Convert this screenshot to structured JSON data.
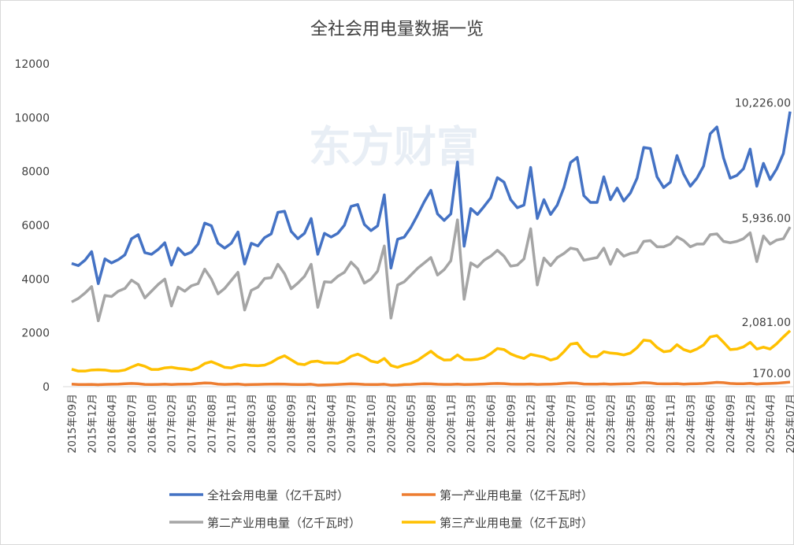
{
  "chart_data": {
    "type": "line",
    "title": "全社会用电量数据一览",
    "watermark": "东方财富",
    "categories": [
      "2015年09月",
      null,
      null,
      "2015年12月",
      null,
      null,
      "2016年04月",
      null,
      null,
      "2016年07月",
      null,
      null,
      "2016年10月",
      null,
      null,
      "2017年02月",
      null,
      null,
      "2017年05月",
      null,
      null,
      "2017年08月",
      null,
      null,
      "2017年11月",
      null,
      null,
      "2018年03月",
      null,
      null,
      "2018年06月",
      null,
      null,
      "2018年09月",
      null,
      null,
      "2018年12月",
      null,
      null,
      "2019年04月",
      null,
      null,
      "2019年07月",
      null,
      null,
      "2019年10月",
      null,
      null,
      "2020年02月",
      null,
      null,
      "2020年05月",
      null,
      null,
      "2020年08月",
      null,
      null,
      "2020年11月",
      null,
      null,
      "2021年03月",
      null,
      null,
      "2021年06月",
      null,
      null,
      "2021年09月",
      null,
      null,
      "2021年12月",
      null,
      null,
      "2022年04月",
      null,
      null,
      "2022年07月",
      null,
      null,
      "2022年10月",
      null,
      null,
      "2023年02月",
      null,
      null,
      "2023年05月",
      null,
      null,
      "2023年08月",
      null,
      null,
      "2023年11月",
      null,
      null,
      "2024年03月",
      null,
      null,
      "2024年06月",
      null,
      null,
      "2024年09月",
      null,
      null,
      "2024年12月",
      null,
      null,
      "2025年04月",
      null,
      null,
      "2025年07月"
    ],
    "series": [
      {
        "name": "全社会用电量（亿千瓦时）",
        "color": "#4472c4",
        "values": [
          4580,
          4500,
          4700,
          5020,
          3830,
          4750,
          4600,
          4720,
          4900,
          5500,
          5650,
          4980,
          4920,
          5100,
          5350,
          4520,
          5150,
          4900,
          5000,
          5300,
          6080,
          5980,
          5330,
          5150,
          5330,
          5750,
          4560,
          5330,
          5230,
          5540,
          5680,
          6480,
          6520,
          5770,
          5500,
          5700,
          6250,
          4920,
          5700,
          5560,
          5700,
          6000,
          6700,
          6770,
          6030,
          5800,
          5980,
          7130,
          4410,
          5480,
          5560,
          5920,
          6380,
          6870,
          7300,
          6420,
          6180,
          6420,
          8350,
          5220,
          6620,
          6400,
          6700,
          7020,
          7770,
          7600,
          6950,
          6650,
          6750,
          8150,
          6250,
          6950,
          6400,
          6750,
          7400,
          8330,
          8520,
          7100,
          6850,
          6850,
          7800,
          6950,
          7380,
          6900,
          7200,
          7750,
          8890,
          8850,
          7800,
          7400,
          7600,
          8590,
          7900,
          7450,
          7750,
          8200,
          9400,
          9650,
          8500,
          7750,
          7850,
          8100,
          8830,
          7450,
          8300,
          7700,
          8100,
          8670,
          10226
        ],
        "value_labels": [
          null,
          null,
          null,
          null,
          null,
          null,
          null,
          null,
          null,
          null,
          null,
          null,
          null,
          null,
          null,
          null,
          null,
          null,
          null,
          null,
          null,
          null,
          null,
          null,
          null,
          null,
          null,
          null,
          null,
          null,
          null,
          null,
          null,
          null,
          null,
          null,
          null,
          null,
          null,
          null,
          null,
          null,
          null,
          null,
          null,
          null,
          null,
          null,
          null,
          null,
          null,
          null,
          null,
          null,
          null,
          null,
          null,
          null,
          null,
          null,
          null,
          null,
          null,
          null,
          null,
          null,
          null,
          null,
          null,
          null,
          null,
          null,
          null,
          null,
          null,
          null,
          null,
          null,
          null,
          null,
          null,
          null,
          null,
          null,
          null,
          null,
          null,
          null,
          null,
          null,
          null,
          null,
          null,
          null,
          null,
          null,
          null,
          null,
          null,
          null,
          null,
          null,
          null,
          null,
          null,
          null,
          null,
          null,
          "10,226.00"
        ]
      },
      {
        "name": "第一产业用电量（亿千瓦时）",
        "color": "#ed7d31",
        "values": [
          95,
          80,
          80,
          85,
          75,
          85,
          90,
          95,
          110,
          120,
          110,
          85,
          80,
          85,
          95,
          80,
          90,
          95,
          100,
          120,
          140,
          130,
          95,
          85,
          90,
          100,
          75,
          80,
          85,
          90,
          95,
          100,
          95,
          85,
          80,
          80,
          90,
          60,
          65,
          75,
          85,
          95,
          105,
          100,
          85,
          80,
          80,
          90,
          60,
          65,
          80,
          85,
          100,
          110,
          105,
          90,
          85,
          85,
          95,
          80,
          85,
          90,
          100,
          115,
          120,
          115,
          95,
          90,
          90,
          100,
          85,
          90,
          95,
          105,
          125,
          140,
          130,
          100,
          95,
          95,
          105,
          90,
          100,
          105,
          110,
          130,
          150,
          140,
          110,
          105,
          105,
          115,
          95,
          105,
          110,
          120,
          140,
          160,
          150,
          120,
          110,
          110,
          125,
          100,
          115,
          120,
          130,
          150,
          170
        ],
        "value_labels": [
          null,
          null,
          null,
          null,
          null,
          null,
          null,
          null,
          null,
          null,
          null,
          null,
          null,
          null,
          null,
          null,
          null,
          null,
          null,
          null,
          null,
          null,
          null,
          null,
          null,
          null,
          null,
          null,
          null,
          null,
          null,
          null,
          null,
          null,
          null,
          null,
          null,
          null,
          null,
          null,
          null,
          null,
          null,
          null,
          null,
          null,
          null,
          null,
          null,
          null,
          null,
          null,
          null,
          null,
          null,
          null,
          null,
          null,
          null,
          null,
          null,
          null,
          null,
          null,
          null,
          null,
          null,
          null,
          null,
          null,
          null,
          null,
          null,
          null,
          null,
          null,
          null,
          null,
          null,
          null,
          null,
          null,
          null,
          null,
          null,
          null,
          null,
          null,
          null,
          null,
          null,
          null,
          null,
          null,
          null,
          null,
          null,
          null,
          null,
          null,
          null,
          null,
          null,
          null,
          null,
          null,
          null,
          null,
          "170.00"
        ]
      },
      {
        "name": "第二产业用电量（亿千瓦时）",
        "color": "#a5a5a5",
        "values": [
          3150,
          3280,
          3480,
          3720,
          2450,
          3390,
          3350,
          3550,
          3650,
          3960,
          3800,
          3300,
          3550,
          3800,
          4000,
          3000,
          3700,
          3550,
          3750,
          3830,
          4370,
          4000,
          3450,
          3650,
          3950,
          4250,
          2850,
          3580,
          3700,
          4020,
          4050,
          4550,
          4200,
          3640,
          3850,
          4100,
          4550,
          2950,
          3900,
          3880,
          4100,
          4250,
          4630,
          4380,
          3850,
          4000,
          4300,
          5230,
          2550,
          3780,
          3900,
          4150,
          4400,
          4600,
          4800,
          4150,
          4350,
          4680,
          6200,
          3250,
          4600,
          4450,
          4700,
          4850,
          5070,
          4850,
          4480,
          4520,
          4750,
          5870,
          3780,
          4780,
          4500,
          4800,
          4950,
          5150,
          5100,
          4700,
          4750,
          4800,
          5150,
          4550,
          5100,
          4850,
          4950,
          5000,
          5400,
          5430,
          5200,
          5200,
          5300,
          5570,
          5430,
          5200,
          5300,
          5300,
          5650,
          5680,
          5400,
          5350,
          5400,
          5500,
          5720,
          4650,
          5600,
          5300,
          5450,
          5500,
          5936
        ],
        "value_labels": [
          null,
          null,
          null,
          null,
          null,
          null,
          null,
          null,
          null,
          null,
          null,
          null,
          null,
          null,
          null,
          null,
          null,
          null,
          null,
          null,
          null,
          null,
          null,
          null,
          null,
          null,
          null,
          null,
          null,
          null,
          null,
          null,
          null,
          null,
          null,
          null,
          null,
          null,
          null,
          null,
          null,
          null,
          null,
          null,
          null,
          null,
          null,
          null,
          null,
          null,
          null,
          null,
          null,
          null,
          null,
          null,
          null,
          null,
          null,
          null,
          null,
          null,
          null,
          null,
          null,
          null,
          null,
          null,
          null,
          null,
          null,
          null,
          null,
          null,
          null,
          null,
          null,
          null,
          null,
          null,
          null,
          null,
          null,
          null,
          null,
          null,
          null,
          null,
          null,
          null,
          null,
          null,
          null,
          null,
          null,
          null,
          null,
          null,
          null,
          null,
          null,
          null,
          null,
          null,
          null,
          null,
          null,
          null,
          "5,936.00"
        ]
      },
      {
        "name": "第三产业用电量（亿千瓦时）",
        "color": "#ffc000",
        "values": [
          650,
          580,
          580,
          620,
          630,
          620,
          580,
          580,
          620,
          730,
          830,
          760,
          640,
          640,
          700,
          720,
          680,
          660,
          620,
          700,
          860,
          930,
          830,
          720,
          700,
          780,
          820,
          790,
          780,
          800,
          900,
          1050,
          1150,
          1000,
          850,
          820,
          930,
          950,
          880,
          880,
          870,
          960,
          1130,
          1210,
          1100,
          950,
          900,
          1050,
          790,
          720,
          810,
          870,
          980,
          1150,
          1320,
          1120,
          990,
          1000,
          1180,
          1010,
          1000,
          1020,
          1080,
          1230,
          1420,
          1380,
          1220,
          1120,
          1050,
          1200,
          1150,
          1100,
          990,
          1060,
          1300,
          1580,
          1620,
          1300,
          1120,
          1120,
          1300,
          1250,
          1230,
          1180,
          1250,
          1450,
          1730,
          1700,
          1460,
          1300,
          1330,
          1560,
          1380,
          1300,
          1400,
          1550,
          1850,
          1900,
          1650,
          1380,
          1400,
          1480,
          1650,
          1400,
          1470,
          1400,
          1600,
          1850,
          2081
        ],
        "value_labels": [
          null,
          null,
          null,
          null,
          null,
          null,
          null,
          null,
          null,
          null,
          null,
          null,
          null,
          null,
          null,
          null,
          null,
          null,
          null,
          null,
          null,
          null,
          null,
          null,
          null,
          null,
          null,
          null,
          null,
          null,
          null,
          null,
          null,
          null,
          null,
          null,
          null,
          null,
          null,
          null,
          null,
          null,
          null,
          null,
          null,
          null,
          null,
          null,
          null,
          null,
          null,
          null,
          null,
          null,
          null,
          null,
          null,
          null,
          null,
          null,
          null,
          null,
          null,
          null,
          null,
          null,
          null,
          null,
          null,
          null,
          null,
          null,
          null,
          null,
          null,
          null,
          null,
          null,
          null,
          null,
          null,
          null,
          null,
          null,
          null,
          null,
          null,
          null,
          null,
          null,
          null,
          null,
          null,
          null,
          null,
          null,
          null,
          null,
          null,
          null,
          null,
          null,
          null,
          null,
          null,
          null,
          null,
          null,
          "2,081.00"
        ]
      }
    ],
    "ylim": [
      0,
      12000
    ],
    "yticks": [
      0,
      2000,
      4000,
      6000,
      8000,
      10000,
      12000
    ],
    "grid": false,
    "legend": "bottom"
  }
}
